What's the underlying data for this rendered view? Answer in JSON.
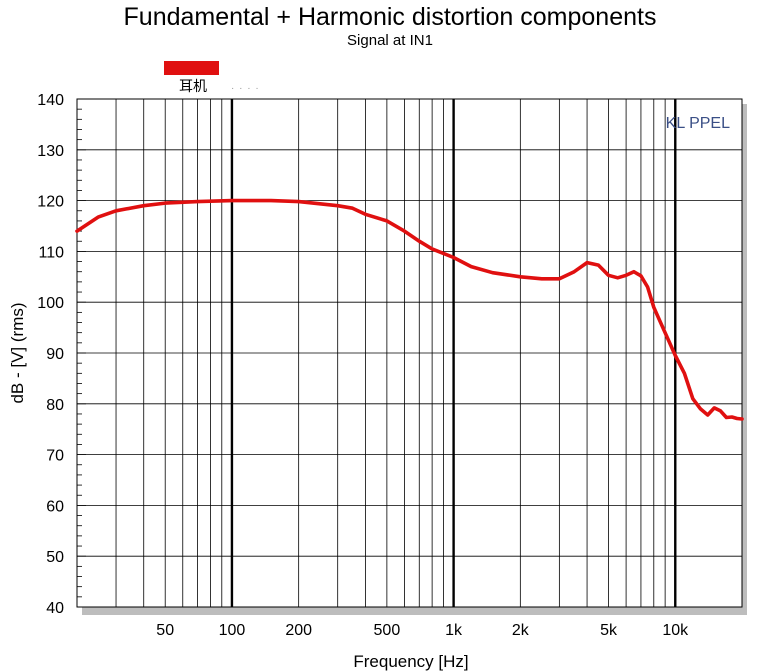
{
  "chart_data": {
    "type": "line",
    "title": "Fundamental + Harmonic distortion components",
    "subtitle": "Signal at IN1",
    "xlabel": "Frequency [Hz]",
    "ylabel": "dB - [V]  (rms)",
    "xscale": "log",
    "xlim": [
      20,
      20000
    ],
    "ylim": [
      40,
      140
    ],
    "grid": true,
    "legend_position": "top-left",
    "watermark": "KL PPEL",
    "x_ticks": [
      50,
      100,
      200,
      500,
      1000,
      2000,
      5000,
      10000
    ],
    "x_tick_labels": [
      "50",
      "100",
      "200",
      "500",
      "1k",
      "2k",
      "5k",
      "10k"
    ],
    "y_ticks": [
      40,
      50,
      60,
      70,
      80,
      90,
      100,
      110,
      120,
      130,
      140
    ],
    "y_tick_labels": [
      "40",
      "50",
      "60",
      "70",
      "80",
      "90",
      "100",
      "110",
      "120",
      "130",
      "140"
    ],
    "series": [
      {
        "name": "耳机",
        "color": "#e01010",
        "x": [
          20,
          25,
          30,
          40,
          50,
          70,
          100,
          150,
          200,
          300,
          350,
          400,
          500,
          600,
          700,
          800,
          1000,
          1200,
          1500,
          2000,
          2500,
          3000,
          3500,
          4000,
          4500,
          5000,
          5500,
          6000,
          6500,
          7000,
          7500,
          8000,
          9000,
          10000,
          11000,
          12000,
          13000,
          14000,
          15000,
          16000,
          17000,
          18000,
          19000,
          20000
        ],
        "values": [
          114,
          116.8,
          118,
          119,
          119.5,
          119.8,
          120,
          120,
          119.8,
          119,
          118.5,
          117.3,
          116,
          114,
          112,
          110.5,
          108.8,
          107,
          105.8,
          105,
          104.6,
          104.6,
          106,
          107.8,
          107.3,
          105.3,
          104.8,
          105.3,
          106,
          105.2,
          103,
          99,
          94,
          89.5,
          86,
          81,
          79,
          77.8,
          79.2,
          78.6,
          77.3,
          77.4,
          77.1,
          77
        ]
      }
    ]
  }
}
